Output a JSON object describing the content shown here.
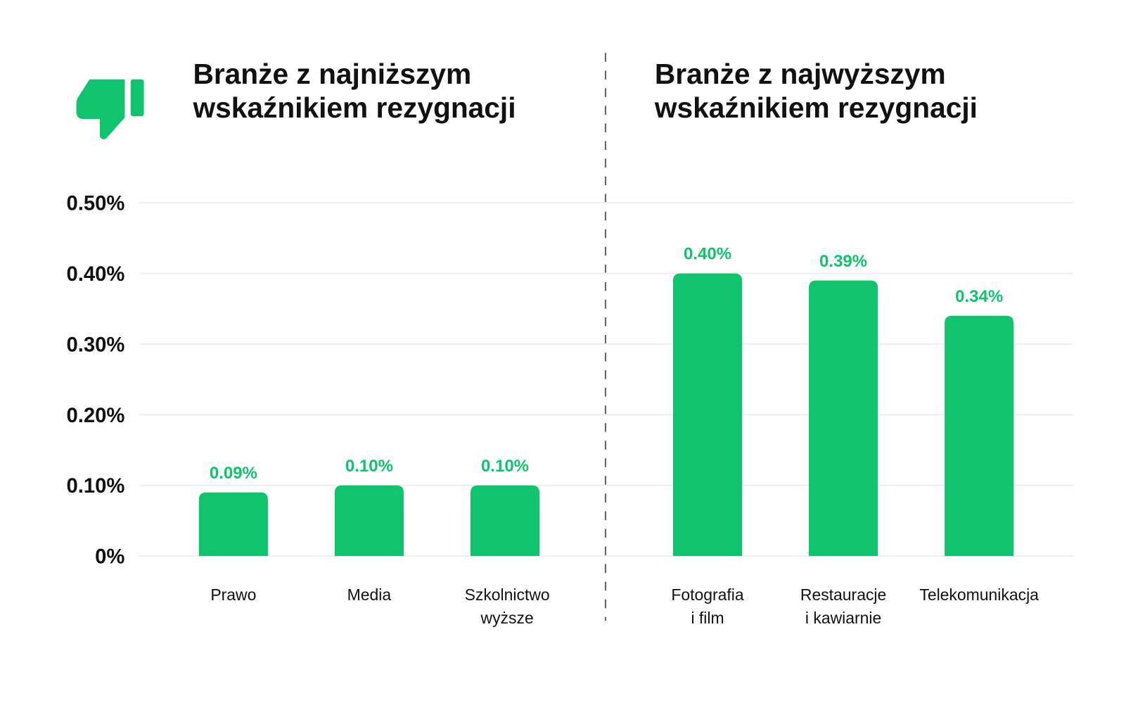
{
  "colors": {
    "bar": "#0fc46c",
    "value_label": "#0fc46c",
    "grid": "#eeeef2",
    "divider": "#666666"
  },
  "icon": "thumbs-down-icon",
  "chart_data": [
    {
      "type": "bar",
      "title": [
        "Branże z najniższym",
        "wskaźnikiem rezygnacji"
      ],
      "categories": [
        [
          "Prawo"
        ],
        [
          "Media"
        ],
        [
          "Szkolnictwo",
          "wyższe"
        ]
      ],
      "values": [
        0.09,
        0.1,
        0.1
      ],
      "value_labels": [
        "0.09%",
        "0.10%",
        "0.10%"
      ],
      "ylim": [
        0,
        0.5
      ],
      "yticks": [
        0,
        0.1,
        0.2,
        0.3,
        0.4,
        0.5
      ],
      "ytick_labels": [
        "0%",
        "0.10%",
        "0.20%",
        "0.30%",
        "0.40%",
        "0.50%"
      ],
      "grid": true
    },
    {
      "type": "bar",
      "title": [
        "Branże z najwyższym",
        "wskaźnikiem rezygnacji"
      ],
      "categories": [
        [
          "Fotografia",
          "i film"
        ],
        [
          "Restauracje",
          "i kawiarnie"
        ],
        [
          "Telekomunikacja"
        ]
      ],
      "values": [
        0.4,
        0.39,
        0.34
      ],
      "value_labels": [
        "0.40%",
        "0.39%",
        "0.34%"
      ],
      "ylim": [
        0,
        0.5
      ],
      "grid": true
    }
  ]
}
